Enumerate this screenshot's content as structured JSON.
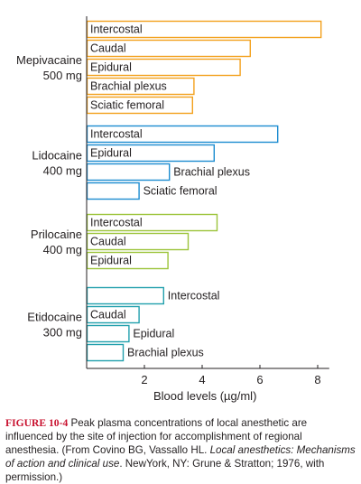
{
  "chart_data": {
    "type": "bar",
    "orientation": "horizontal",
    "xlabel": "Blood levels (µg/ml)",
    "xticks": [
      2,
      4,
      6,
      8
    ],
    "xlim": [
      0,
      8.4
    ],
    "groups": [
      {
        "drug": "Mepivacaine",
        "dose": "500 mg",
        "color": "#f3a11d",
        "bars": [
          {
            "site": "Intercostal",
            "value": 8.1
          },
          {
            "site": "Caudal",
            "value": 5.65
          },
          {
            "site": "Epidural",
            "value": 5.3
          },
          {
            "site": "Brachial plexus",
            "value": 3.7
          },
          {
            "site": "Sciatic femoral",
            "value": 3.65
          }
        ]
      },
      {
        "drug": "Lidocaine",
        "dose": "400 mg",
        "color": "#1c8cd0",
        "bars": [
          {
            "site": "Intercostal",
            "value": 6.6
          },
          {
            "site": "Epidural",
            "value": 4.4
          },
          {
            "site": "Brachial plexus",
            "value": 2.85
          },
          {
            "site": "Sciatic femoral",
            "value": 1.8
          }
        ]
      },
      {
        "drug": "Prilocaine",
        "dose": "400 mg",
        "color": "#9cc43a",
        "bars": [
          {
            "site": "Intercostal",
            "value": 4.5
          },
          {
            "site": "Caudal",
            "value": 3.5
          },
          {
            "site": "Epidural",
            "value": 2.8
          }
        ]
      },
      {
        "drug": "Etidocaine",
        "dose": "300 mg",
        "color": "#22a0ad",
        "bars": [
          {
            "site": "Intercostal",
            "value": 2.65
          },
          {
            "site": "Caudal",
            "value": 1.8
          },
          {
            "site": "Epidural",
            "value": 1.45
          },
          {
            "site": "Brachial plexus",
            "value": 1.25
          }
        ]
      }
    ]
  },
  "caption": {
    "figure_label": "FIGURE 10-4",
    "text_1": " Peak plasma concentrations of local anesthetic are influenced by the site of injection for accomplishment of regional anesthesia. (From Covino BG, Vassallo HL. ",
    "italic": "Local anesthetics: Mechanisms of action and clinical use",
    "text_2": ". NewYork, NY: Grune & Stratton; 1976, with permission.)"
  }
}
